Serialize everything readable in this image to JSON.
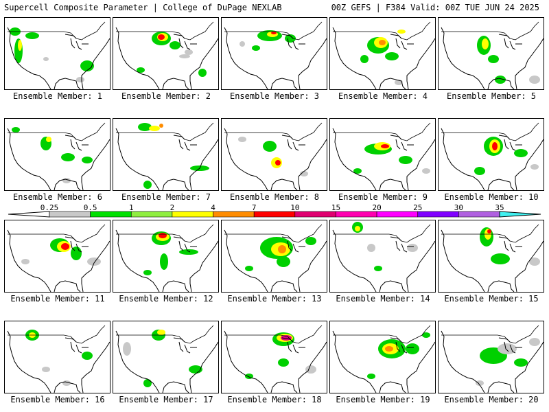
{
  "header": {
    "title": "Supercell Composite Parameter | College of DuPage NEXLAB",
    "run_info": "00Z GEFS | F384 Valid: 00Z TUE JUN 24 2025"
  },
  "colorbar": {
    "ticks": [
      "0.25",
      "0.5",
      "1",
      "2",
      "4",
      "7",
      "10",
      "15",
      "20",
      "25",
      "30",
      "35"
    ],
    "colors": [
      "#c8c8c8",
      "#00e000",
      "#90ee40",
      "#ffff00",
      "#ff8c00",
      "#ff0000",
      "#e00070",
      "#ff00b0",
      "#ff00ff",
      "#8000ff",
      "#b060e0",
      "#40f0f0"
    ]
  },
  "colors": {
    "map_outline": "#000000",
    "low": "#c8c8c8",
    "green": "#00d000",
    "lightgreen": "#98ee40",
    "yellow": "#ffff00",
    "orange": "#ff8c00",
    "red": "#ff0000",
    "magenta": "#e0007f"
  },
  "members": [
    {
      "label": "Ensemble Member: 1"
    },
    {
      "label": "Ensemble Member: 2"
    },
    {
      "label": "Ensemble Member: 3"
    },
    {
      "label": "Ensemble Member: 4"
    },
    {
      "label": "Ensemble Member: 5"
    },
    {
      "label": "Ensemble Member: 6"
    },
    {
      "label": "Ensemble Member: 7"
    },
    {
      "label": "Ensemble Member: 8"
    },
    {
      "label": "Ensemble Member: 9"
    },
    {
      "label": "Ensemble Member: 10"
    },
    {
      "label": "Ensemble Member: 11"
    },
    {
      "label": "Ensemble Member: 12"
    },
    {
      "label": "Ensemble Member: 13"
    },
    {
      "label": "Ensemble Member: 14"
    },
    {
      "label": "Ensemble Member: 15"
    },
    {
      "label": "Ensemble Member: 16"
    },
    {
      "label": "Ensemble Member: 17"
    },
    {
      "label": "Ensemble Member: 18"
    },
    {
      "label": "Ensemble Member: 19"
    },
    {
      "label": "Ensemble Member: 20"
    }
  ]
}
